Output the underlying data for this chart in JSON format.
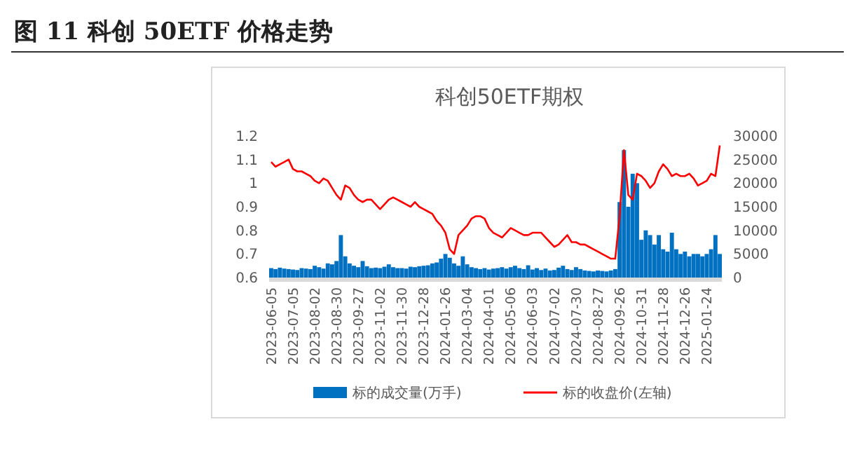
{
  "chart_data": {
    "type": "bar",
    "title": "图 11 科创 50ETF 价格走势",
    "subtitle": "科创50ETF期权",
    "categories": [
      "2023-06-05",
      null,
      null,
      null,
      null,
      "2023-07-05",
      null,
      null,
      null,
      null,
      "2023-08-02",
      null,
      null,
      null,
      null,
      "2023-08-30",
      null,
      null,
      null,
      null,
      "2023-09-27",
      null,
      null,
      null,
      null,
      "2023-11-02",
      null,
      null,
      null,
      null,
      "2023-11-30",
      null,
      null,
      null,
      null,
      "2023-12-28",
      null,
      null,
      null,
      null,
      "2024-01-26",
      null,
      null,
      null,
      null,
      "2024-03-04",
      null,
      null,
      null,
      null,
      "2024-04-01",
      null,
      null,
      null,
      null,
      "2024-05-06",
      null,
      null,
      null,
      null,
      "2024-06-03",
      null,
      null,
      null,
      null,
      "2024-07-02",
      null,
      null,
      null,
      null,
      "2024-07-30",
      null,
      null,
      null,
      null,
      "2024-08-27",
      null,
      null,
      null,
      null,
      "2024-09-26",
      null,
      null,
      null,
      null,
      "2024-10-31",
      null,
      null,
      null,
      null,
      "2024-11-28",
      null,
      null,
      null,
      null,
      "2024-12-26",
      null,
      null,
      null,
      null,
      "2025-01-24",
      null,
      null,
      null
    ],
    "series": [
      {
        "name": "标的成交量(万手)",
        "axis": "y2",
        "color": "#0070c0",
        "values": [
          2000,
          1800,
          2100,
          1900,
          1800,
          1700,
          1600,
          2000,
          1900,
          1800,
          2500,
          2200,
          1900,
          3000,
          2800,
          3500,
          9000,
          4500,
          3000,
          2500,
          2200,
          3500,
          2400,
          2000,
          2100,
          2000,
          2300,
          2800,
          2200,
          2000,
          2000,
          1900,
          2300,
          2200,
          2400,
          2500,
          2600,
          3000,
          3200,
          4000,
          5000,
          4200,
          3000,
          2500,
          4500,
          2800,
          2200,
          2000,
          1800,
          2000,
          1700,
          1900,
          2000,
          2200,
          1900,
          2200,
          2500,
          2000,
          1800,
          2600,
          1700,
          2000,
          1600,
          1900,
          1500,
          1600,
          2100,
          2500,
          1800,
          1600,
          2200,
          1800,
          1500,
          1400,
          1300,
          1500,
          1400,
          1300,
          1500,
          1800,
          16000,
          27000,
          15000,
          22000,
          20000,
          8000,
          10000,
          9000,
          7000,
          9000,
          6000,
          5500,
          9500,
          6000,
          5000,
          5500,
          4500,
          5000,
          5000,
          4500,
          5000,
          6000,
          9000,
          5000
        ]
      },
      {
        "name": "标的收盘价(左轴)",
        "type": "line",
        "axis": "y",
        "color": "#ff0000",
        "values": [
          1.09,
          1.07,
          1.08,
          1.09,
          1.1,
          1.06,
          1.05,
          1.05,
          1.04,
          1.03,
          1.01,
          1.0,
          1.02,
          1.01,
          0.98,
          0.95,
          0.93,
          0.99,
          0.98,
          0.95,
          0.93,
          0.92,
          0.93,
          0.93,
          0.91,
          0.89,
          0.91,
          0.93,
          0.94,
          0.93,
          0.92,
          0.91,
          0.9,
          0.92,
          0.9,
          0.89,
          0.88,
          0.87,
          0.84,
          0.82,
          0.79,
          0.72,
          0.7,
          0.78,
          0.8,
          0.82,
          0.85,
          0.86,
          0.86,
          0.85,
          0.81,
          0.79,
          0.78,
          0.77,
          0.79,
          0.81,
          0.8,
          0.79,
          0.78,
          0.78,
          0.79,
          0.79,
          0.79,
          0.77,
          0.75,
          0.73,
          0.74,
          0.76,
          0.78,
          0.75,
          0.75,
          0.74,
          0.74,
          0.73,
          0.72,
          0.71,
          0.7,
          0.69,
          0.68,
          0.68,
          0.86,
          1.14,
          0.95,
          0.93,
          1.04,
          1.03,
          1.01,
          0.98,
          1.0,
          1.05,
          1.08,
          1.06,
          1.03,
          1.04,
          1.03,
          1.03,
          1.04,
          1.02,
          0.99,
          1.0,
          1.01,
          1.04,
          1.03,
          1.16
        ]
      }
    ],
    "ylim": [
      0.6,
      1.2
    ],
    "yticks": [
      0.6,
      0.7,
      0.8,
      0.9,
      1,
      1.1,
      1.2
    ],
    "y2lim": [
      0,
      30000
    ],
    "y2ticks": [
      0,
      5000,
      10000,
      15000,
      20000,
      25000,
      30000
    ],
    "legend": "bottom"
  }
}
